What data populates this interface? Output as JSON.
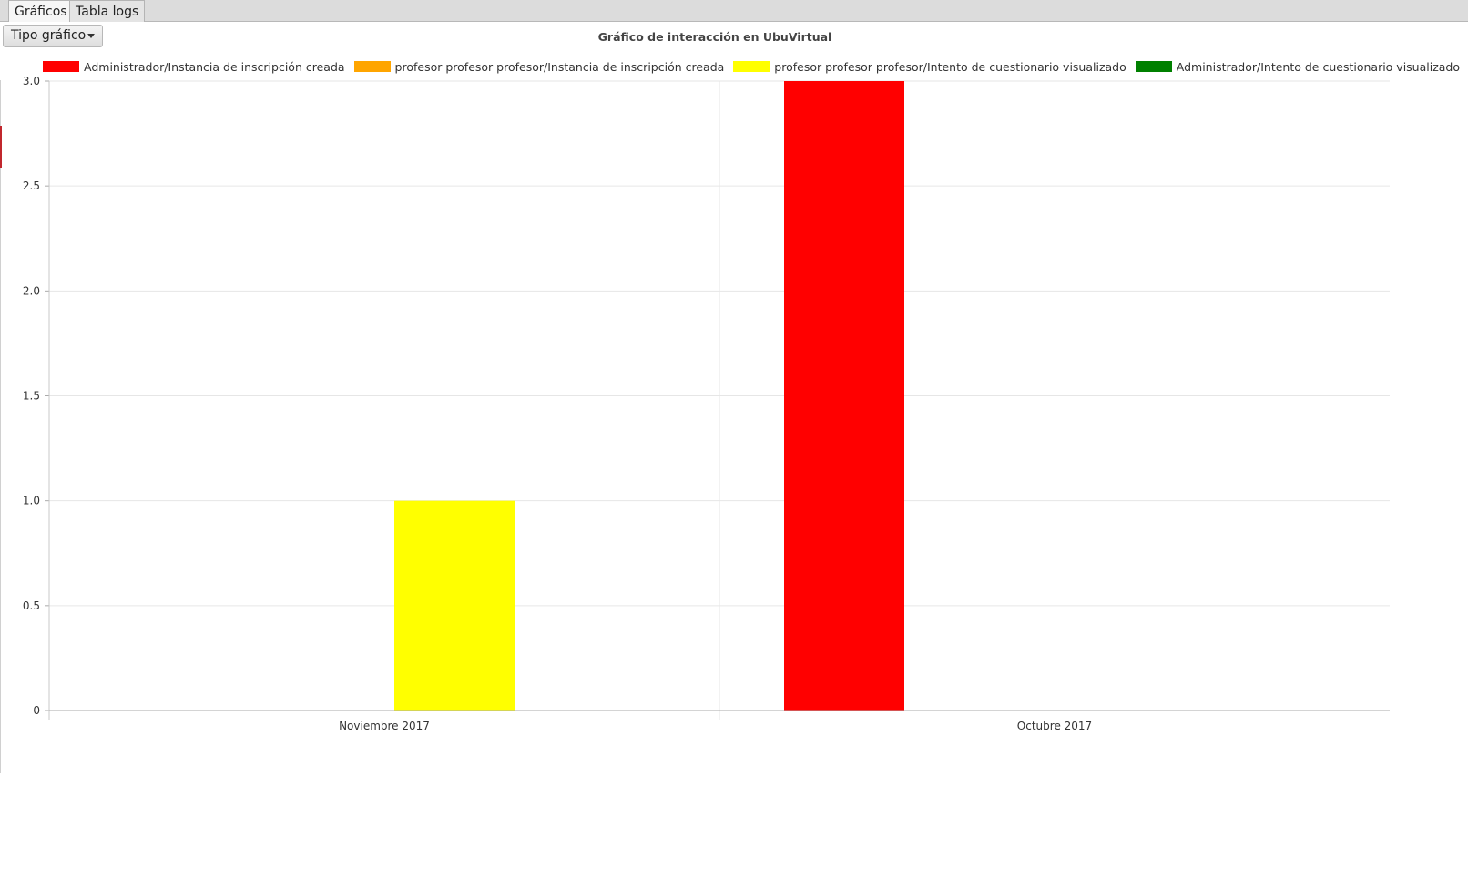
{
  "tabs": [
    {
      "label": "Gráficos",
      "active": true
    },
    {
      "label": "Tabla logs",
      "active": false
    }
  ],
  "toolbar": {
    "chart_type_dropdown": "Tipo gráfico"
  },
  "chart_data": {
    "type": "bar",
    "title": "Gráfico de interacción en UbuVirtual",
    "categories": [
      "Noviembre 2017",
      "Octubre 2017"
    ],
    "series": [
      {
        "name": "Administrador/Instancia de inscripción creada",
        "color": "#ff0000",
        "values": [
          0,
          3
        ]
      },
      {
        "name": "profesor profesor profesor/Instancia de inscripción creada",
        "color": "#ffa500",
        "values": [
          0,
          0
        ]
      },
      {
        "name": "profesor profesor profesor/Intento de cuestionario visualizado",
        "color": "#ffff00",
        "values": [
          1,
          0
        ]
      },
      {
        "name": "Administrador/Intento de cuestionario visualizado",
        "color": "#008000",
        "values": [
          0,
          0
        ]
      }
    ],
    "ylim": [
      0,
      3
    ],
    "yticks": [
      "0",
      "0.5",
      "1.0",
      "1.5",
      "2.0",
      "2.5",
      "3.0"
    ],
    "grid": true,
    "legend_position": "top"
  }
}
